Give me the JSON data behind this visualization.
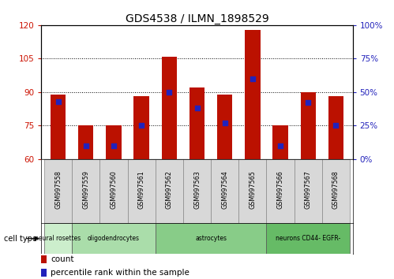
{
  "title": "GDS4538 / ILMN_1898529",
  "samples": [
    "GSM997558",
    "GSM997559",
    "GSM997560",
    "GSM997561",
    "GSM997562",
    "GSM997563",
    "GSM997564",
    "GSM997565",
    "GSM997566",
    "GSM997567",
    "GSM997568"
  ],
  "count_values": [
    89,
    75,
    75,
    88,
    106,
    92,
    89,
    118,
    75,
    90,
    88
  ],
  "percentile_values": [
    43,
    10,
    10,
    25,
    50,
    38,
    27,
    60,
    10,
    42,
    25
  ],
  "cell_types": [
    {
      "label": "neural rosettes",
      "start": 0,
      "end": 1
    },
    {
      "label": "oligodendrocytes",
      "start": 1,
      "end": 4
    },
    {
      "label": "astrocytes",
      "start": 4,
      "end": 8
    },
    {
      "label": "neurons CD44- EGFR-",
      "start": 8,
      "end": 11
    }
  ],
  "cell_colors": [
    "#cceecc",
    "#aaddaa",
    "#88cc88",
    "#66bb66"
  ],
  "ylim_left": [
    60,
    120
  ],
  "ylim_right": [
    0,
    100
  ],
  "left_yticks": [
    60,
    75,
    90,
    105,
    120
  ],
  "right_yticks": [
    0,
    25,
    50,
    75,
    100
  ],
  "bar_color": "#bb1100",
  "blue_color": "#2222bb",
  "bar_width": 0.55,
  "left_color": "#cc1100",
  "right_color": "#2222bb",
  "bg_color": "#ffffff",
  "legend_count_label": "count",
  "legend_pct_label": "percentile rank within the sample",
  "figsize": [
    4.99,
    3.54
  ],
  "dpi": 100
}
